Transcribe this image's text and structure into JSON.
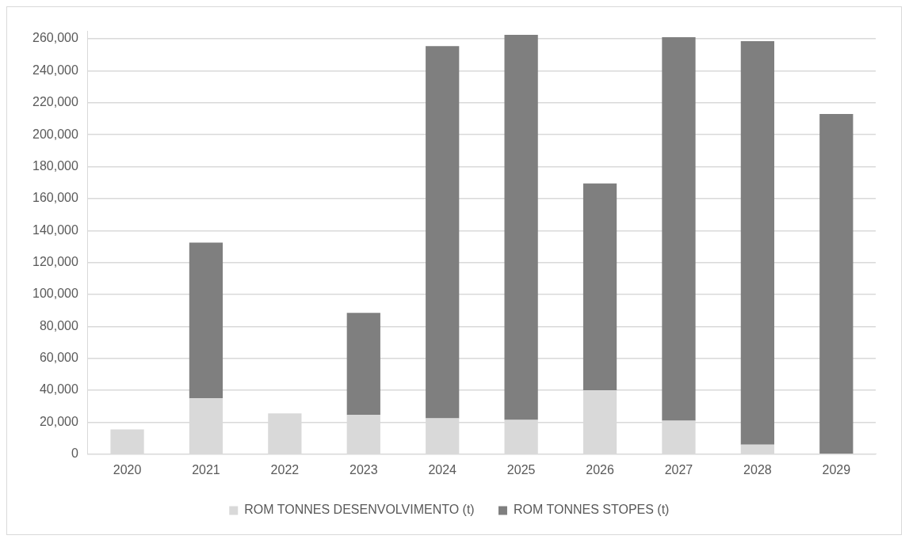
{
  "chart_data": {
    "type": "bar",
    "stacked": true,
    "categories": [
      "2020",
      "2021",
      "2022",
      "2023",
      "2024",
      "2025",
      "2026",
      "2027",
      "2028",
      "2029"
    ],
    "series": [
      {
        "name": "ROM TONNES DESENVOLVIMENTO (t)",
        "color": "#d9d9d9",
        "values": [
          15500,
          35000,
          25500,
          24500,
          22500,
          21500,
          40000,
          21000,
          6000,
          null
        ]
      },
      {
        "name": "ROM TONNES STOPES (t)",
        "color": "#7f7f7f",
        "values": [
          0,
          97500,
          0,
          64000,
          233000,
          241000,
          129500,
          240000,
          252500,
          213000
        ]
      }
    ],
    "ylim": [
      0,
      265000
    ],
    "yticks": [
      0,
      {
        "value": 20000,
        "label": "20,000"
      },
      {
        "value": 40000,
        "label": "40,000"
      },
      {
        "value": 60000,
        "label": "60,000"
      },
      {
        "value": 80000,
        "label": "80,000"
      },
      {
        "value": 100000,
        "label": "100,000"
      },
      {
        "value": 120000,
        "label": "120,000"
      },
      {
        "value": 140000,
        "label": "140,000"
      },
      {
        "value": 160000,
        "label": "160,000"
      },
      {
        "value": 180000,
        "label": "180,000"
      },
      {
        "value": 200000,
        "label": "200,000"
      },
      {
        "value": 220000,
        "label": "220,000"
      },
      {
        "value": 240000,
        "label": "240,000"
      },
      {
        "value": 260000,
        "label": "260,000"
      }
    ],
    "grid": "y",
    "legend": "bottom"
  }
}
